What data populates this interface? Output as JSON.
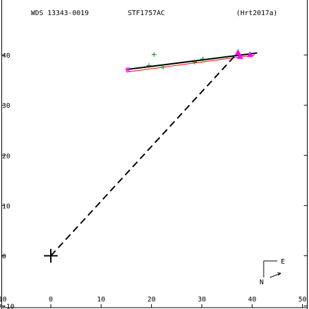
{
  "header": {
    "wds_label": "WDS 13343-0019",
    "discoverer_label": "STF1757AC",
    "reference_label": "(Hrt2017a)"
  },
  "compass": {
    "east_label": "E",
    "north_label": "N"
  },
  "chart_data": {
    "type": "scatter",
    "title": "",
    "xlabel": "",
    "ylabel": "",
    "xlim": [
      -10,
      50
    ],
    "ylim": [
      -10,
      50
    ],
    "x_ticks": [
      -10,
      0,
      10,
      20,
      30,
      40,
      50
    ],
    "y_ticks": [
      -10,
      0,
      10,
      20,
      30,
      40
    ],
    "x_tick_labels": [
      "-10",
      "0",
      "10",
      "20",
      "30",
      "40",
      "50"
    ],
    "y_tick_labels": [
      "-10",
      "0",
      "10",
      "20",
      "30",
      "40"
    ],
    "primary_origin": [
      0,
      0
    ],
    "dashed_line": [
      [
        0,
        0
      ],
      [
        37,
        40.3
      ]
    ],
    "series": [
      {
        "marker": "plus",
        "color": "#008000",
        "points": [
          [
            20.5,
            40.1
          ],
          [
            19.5,
            37.9
          ],
          [
            22.3,
            37.6
          ],
          [
            28.6,
            38.6
          ],
          [
            30.2,
            39.2
          ]
        ]
      },
      {
        "marker": "asterisk",
        "color": "#ff00ff",
        "points": [
          [
            15.3,
            37.1
          ]
        ]
      },
      {
        "marker": "triangle",
        "color": "#ff00ff",
        "points": [
          [
            37.2,
            40.5
          ],
          [
            37.6,
            39.7
          ],
          [
            39.6,
            40.1
          ]
        ]
      }
    ],
    "fit_lines": [
      {
        "color": "#ff0000",
        "points": [
          [
            15.0,
            36.6
          ],
          [
            40.5,
            40.0
          ]
        ]
      },
      {
        "color": "#000000",
        "points": [
          [
            15.0,
            37.1
          ],
          [
            41.0,
            40.4
          ]
        ]
      }
    ],
    "grid": false
  }
}
